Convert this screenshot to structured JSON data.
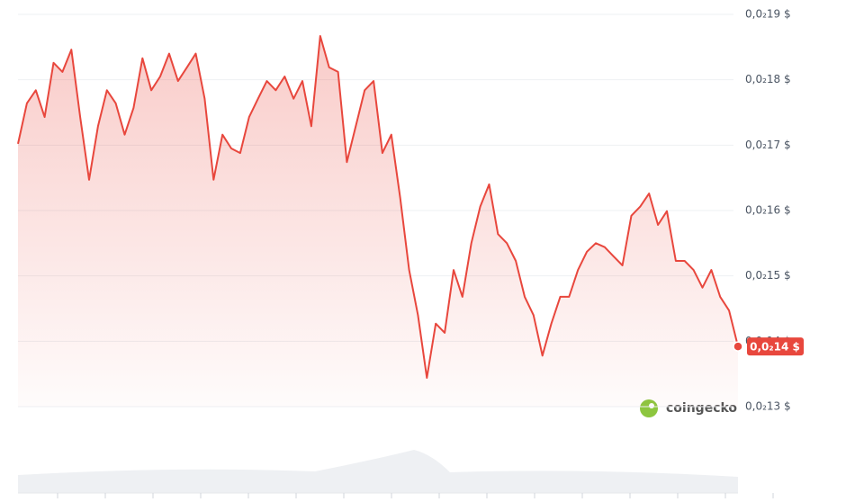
{
  "chart_data": {
    "type": "line",
    "watermark": "coingecko",
    "ylim": [
      0.0013,
      0.0019
    ],
    "yticks": [
      {
        "value": 0.0019,
        "label": "0,0₂19 $"
      },
      {
        "value": 0.0018,
        "label": "0,0₂18 $"
      },
      {
        "value": 0.0017,
        "label": "0,0₂17 $"
      },
      {
        "value": 0.0016,
        "label": "0,0₂16 $"
      },
      {
        "value": 0.0015,
        "label": "0,0₂15 $"
      },
      {
        "value": 0.0014,
        "label": "0,0₂14 $"
      },
      {
        "value": 0.0013,
        "label": "0,0₂13 $"
      }
    ],
    "grid": true,
    "color": "#e8473d",
    "values": [
      0.001702,
      0.001764,
      0.001784,
      0.001743,
      0.001826,
      0.001812,
      0.001846,
      0.001743,
      0.001647,
      0.001729,
      0.001784,
      0.001764,
      0.001716,
      0.001757,
      0.001833,
      0.001784,
      0.001805,
      0.00184,
      0.001798,
      0.001819,
      0.00184,
      0.001771,
      0.001647,
      0.001716,
      0.001695,
      0.001688,
      0.001743,
      0.001771,
      0.001798,
      0.001784,
      0.001805,
      0.001771,
      0.001798,
      0.001729,
      0.001867,
      0.001819,
      0.001812,
      0.001674,
      0.001729,
      0.001784,
      0.001798,
      0.001688,
      0.001716,
      0.001619,
      0.001509,
      0.00144,
      0.001344,
      0.001427,
      0.001413,
      0.001509,
      0.001468,
      0.00155,
      0.001606,
      0.00164,
      0.001564,
      0.00155,
      0.001523,
      0.001468,
      0.00144,
      0.001378,
      0.001427,
      0.001468,
      0.001468,
      0.001509,
      0.001537,
      0.00155,
      0.001544,
      0.00153,
      0.001516,
      0.001592,
      0.001606,
      0.001626,
      0.001578,
      0.001599,
      0.001523,
      0.001523,
      0.001509,
      0.001482,
      0.001509,
      0.001468,
      0.001447,
      0.001392
    ],
    "current_price": {
      "value": 0.001392,
      "label": "0,0₂14 $"
    }
  }
}
